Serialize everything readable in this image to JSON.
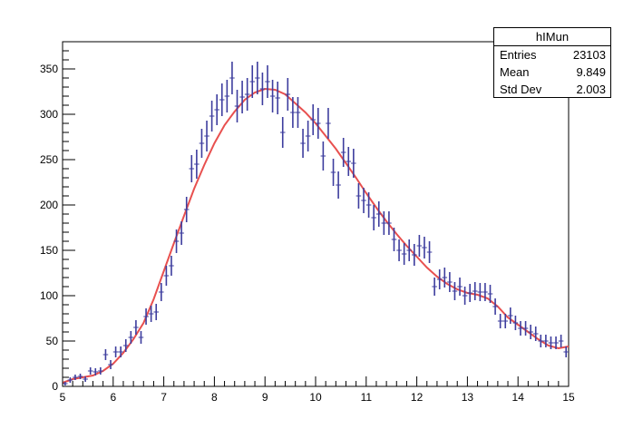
{
  "chart_data": {
    "type": "scatter",
    "title": "",
    "xlabel": "",
    "ylabel": "",
    "xlim": [
      5,
      15
    ],
    "ylim": [
      0,
      380
    ],
    "grid": false,
    "x_ticks": [
      5,
      6,
      7,
      8,
      9,
      10,
      11,
      12,
      13,
      14,
      15
    ],
    "x_tick_labels": [
      "5",
      "6",
      "7",
      "8",
      "9",
      "10",
      "11",
      "12",
      "13",
      "14",
      "15"
    ],
    "y_ticks": [
      0,
      50,
      100,
      150,
      200,
      250,
      300,
      350
    ],
    "y_tick_labels": [
      "0",
      "50",
      "100",
      "150",
      "200",
      "250",
      "300",
      "350"
    ],
    "marker_color": "#3d3d9e",
    "fit_color": "#e8504f",
    "series": [
      {
        "type": "errorbar",
        "bin_width": 0.1,
        "x": [
          5.05,
          5.15,
          5.25,
          5.35,
          5.45,
          5.55,
          5.65,
          5.75,
          5.85,
          5.95,
          6.05,
          6.15,
          6.25,
          6.35,
          6.45,
          6.55,
          6.65,
          6.75,
          6.85,
          6.95,
          7.05,
          7.15,
          7.25,
          7.35,
          7.45,
          7.55,
          7.65,
          7.75,
          7.85,
          7.95,
          8.05,
          8.15,
          8.25,
          8.35,
          8.45,
          8.55,
          8.65,
          8.75,
          8.85,
          8.95,
          9.05,
          9.15,
          9.25,
          9.35,
          9.45,
          9.55,
          9.65,
          9.75,
          9.85,
          9.95,
          10.05,
          10.15,
          10.25,
          10.35,
          10.45,
          10.55,
          10.65,
          10.75,
          10.85,
          10.95,
          11.05,
          11.15,
          11.25,
          11.35,
          11.45,
          11.55,
          11.65,
          11.75,
          11.85,
          11.95,
          12.05,
          12.15,
          12.25,
          12.35,
          12.45,
          12.55,
          12.65,
          12.75,
          12.85,
          12.95,
          13.05,
          13.15,
          13.25,
          13.35,
          13.45,
          13.55,
          13.65,
          13.75,
          13.85,
          13.95,
          14.05,
          14.15,
          14.25,
          14.35,
          14.45,
          14.55,
          14.65,
          14.75,
          14.85,
          14.95
        ],
        "y": [
          3,
          7,
          10,
          11,
          8,
          17,
          16,
          17,
          35,
          24,
          38,
          38,
          45,
          54,
          65,
          54,
          77,
          80,
          82,
          104,
          122,
          133,
          160,
          169,
          195,
          240,
          245,
          268,
          276,
          298,
          305,
          316,
          320,
          340,
          309,
          319,
          322,
          336,
          340,
          328,
          336,
          320,
          318,
          280,
          322,
          302,
          302,
          268,
          276,
          294,
          290,
          254,
          290,
          236,
          222,
          258,
          248,
          246,
          210,
          205,
          200,
          186,
          190,
          180,
          180,
          162,
          150,
          146,
          150,
          145,
          155,
          153,
          148,
          110,
          118,
          120,
          115,
          105,
          110,
          100,
          103,
          105,
          104,
          104,
          102,
          88,
          72,
          72,
          78,
          70,
          64,
          64,
          60,
          58,
          50,
          50,
          48,
          48,
          50,
          38
        ],
        "y_err": [
          2,
          3,
          3,
          3,
          3,
          4,
          4,
          4,
          6,
          5,
          6,
          6,
          7,
          7,
          8,
          7,
          9,
          9,
          9,
          10,
          11,
          11,
          13,
          13,
          14,
          15,
          16,
          16,
          17,
          17,
          17,
          18,
          18,
          18,
          18,
          18,
          18,
          18,
          18,
          18,
          18,
          18,
          18,
          17,
          18,
          17,
          17,
          16,
          17,
          17,
          17,
          16,
          17,
          15,
          15,
          16,
          16,
          16,
          14,
          14,
          14,
          14,
          14,
          13,
          13,
          13,
          12,
          12,
          12,
          12,
          12,
          12,
          12,
          10,
          11,
          11,
          11,
          10,
          10,
          10,
          10,
          10,
          10,
          10,
          10,
          9,
          8,
          8,
          9,
          8,
          8,
          8,
          8,
          8,
          7,
          7,
          7,
          7,
          7,
          6
        ]
      },
      {
        "type": "line",
        "x": [
          5,
          5.2,
          5.4,
          5.6,
          5.8,
          6,
          6.2,
          6.4,
          6.6,
          6.8,
          7,
          7.2,
          7.4,
          7.6,
          7.8,
          8,
          8.2,
          8.4,
          8.6,
          8.8,
          9,
          9.2,
          9.4,
          9.6,
          9.8,
          10,
          10.2,
          10.4,
          10.6,
          10.8,
          11,
          11.2,
          11.4,
          11.6,
          11.8,
          12,
          12.2,
          12.4,
          12.6,
          12.8,
          13,
          13.2,
          13.4,
          13.6,
          13.8,
          14,
          14.2,
          14.4,
          14.6,
          14.8,
          15
        ],
        "y": [
          4,
          8,
          10,
          12,
          17,
          25,
          37,
          52,
          70,
          96,
          127,
          158,
          188,
          218,
          244,
          268,
          288,
          303,
          316,
          324,
          328,
          327,
          322,
          312,
          302,
          290,
          276,
          262,
          246,
          230,
          213,
          197,
          182,
          168,
          155,
          143,
          131,
          121,
          113,
          107,
          103,
          101,
          97,
          88,
          76,
          68,
          60,
          52,
          45,
          42,
          44
        ]
      }
    ],
    "legend": null,
    "stats": {
      "title": "hIMun",
      "rows": [
        {
          "label": "Entries",
          "value": "23103"
        },
        {
          "label": "Mean",
          "value": "9.849"
        },
        {
          "label": "Std Dev",
          "value": "2.003"
        }
      ]
    }
  }
}
